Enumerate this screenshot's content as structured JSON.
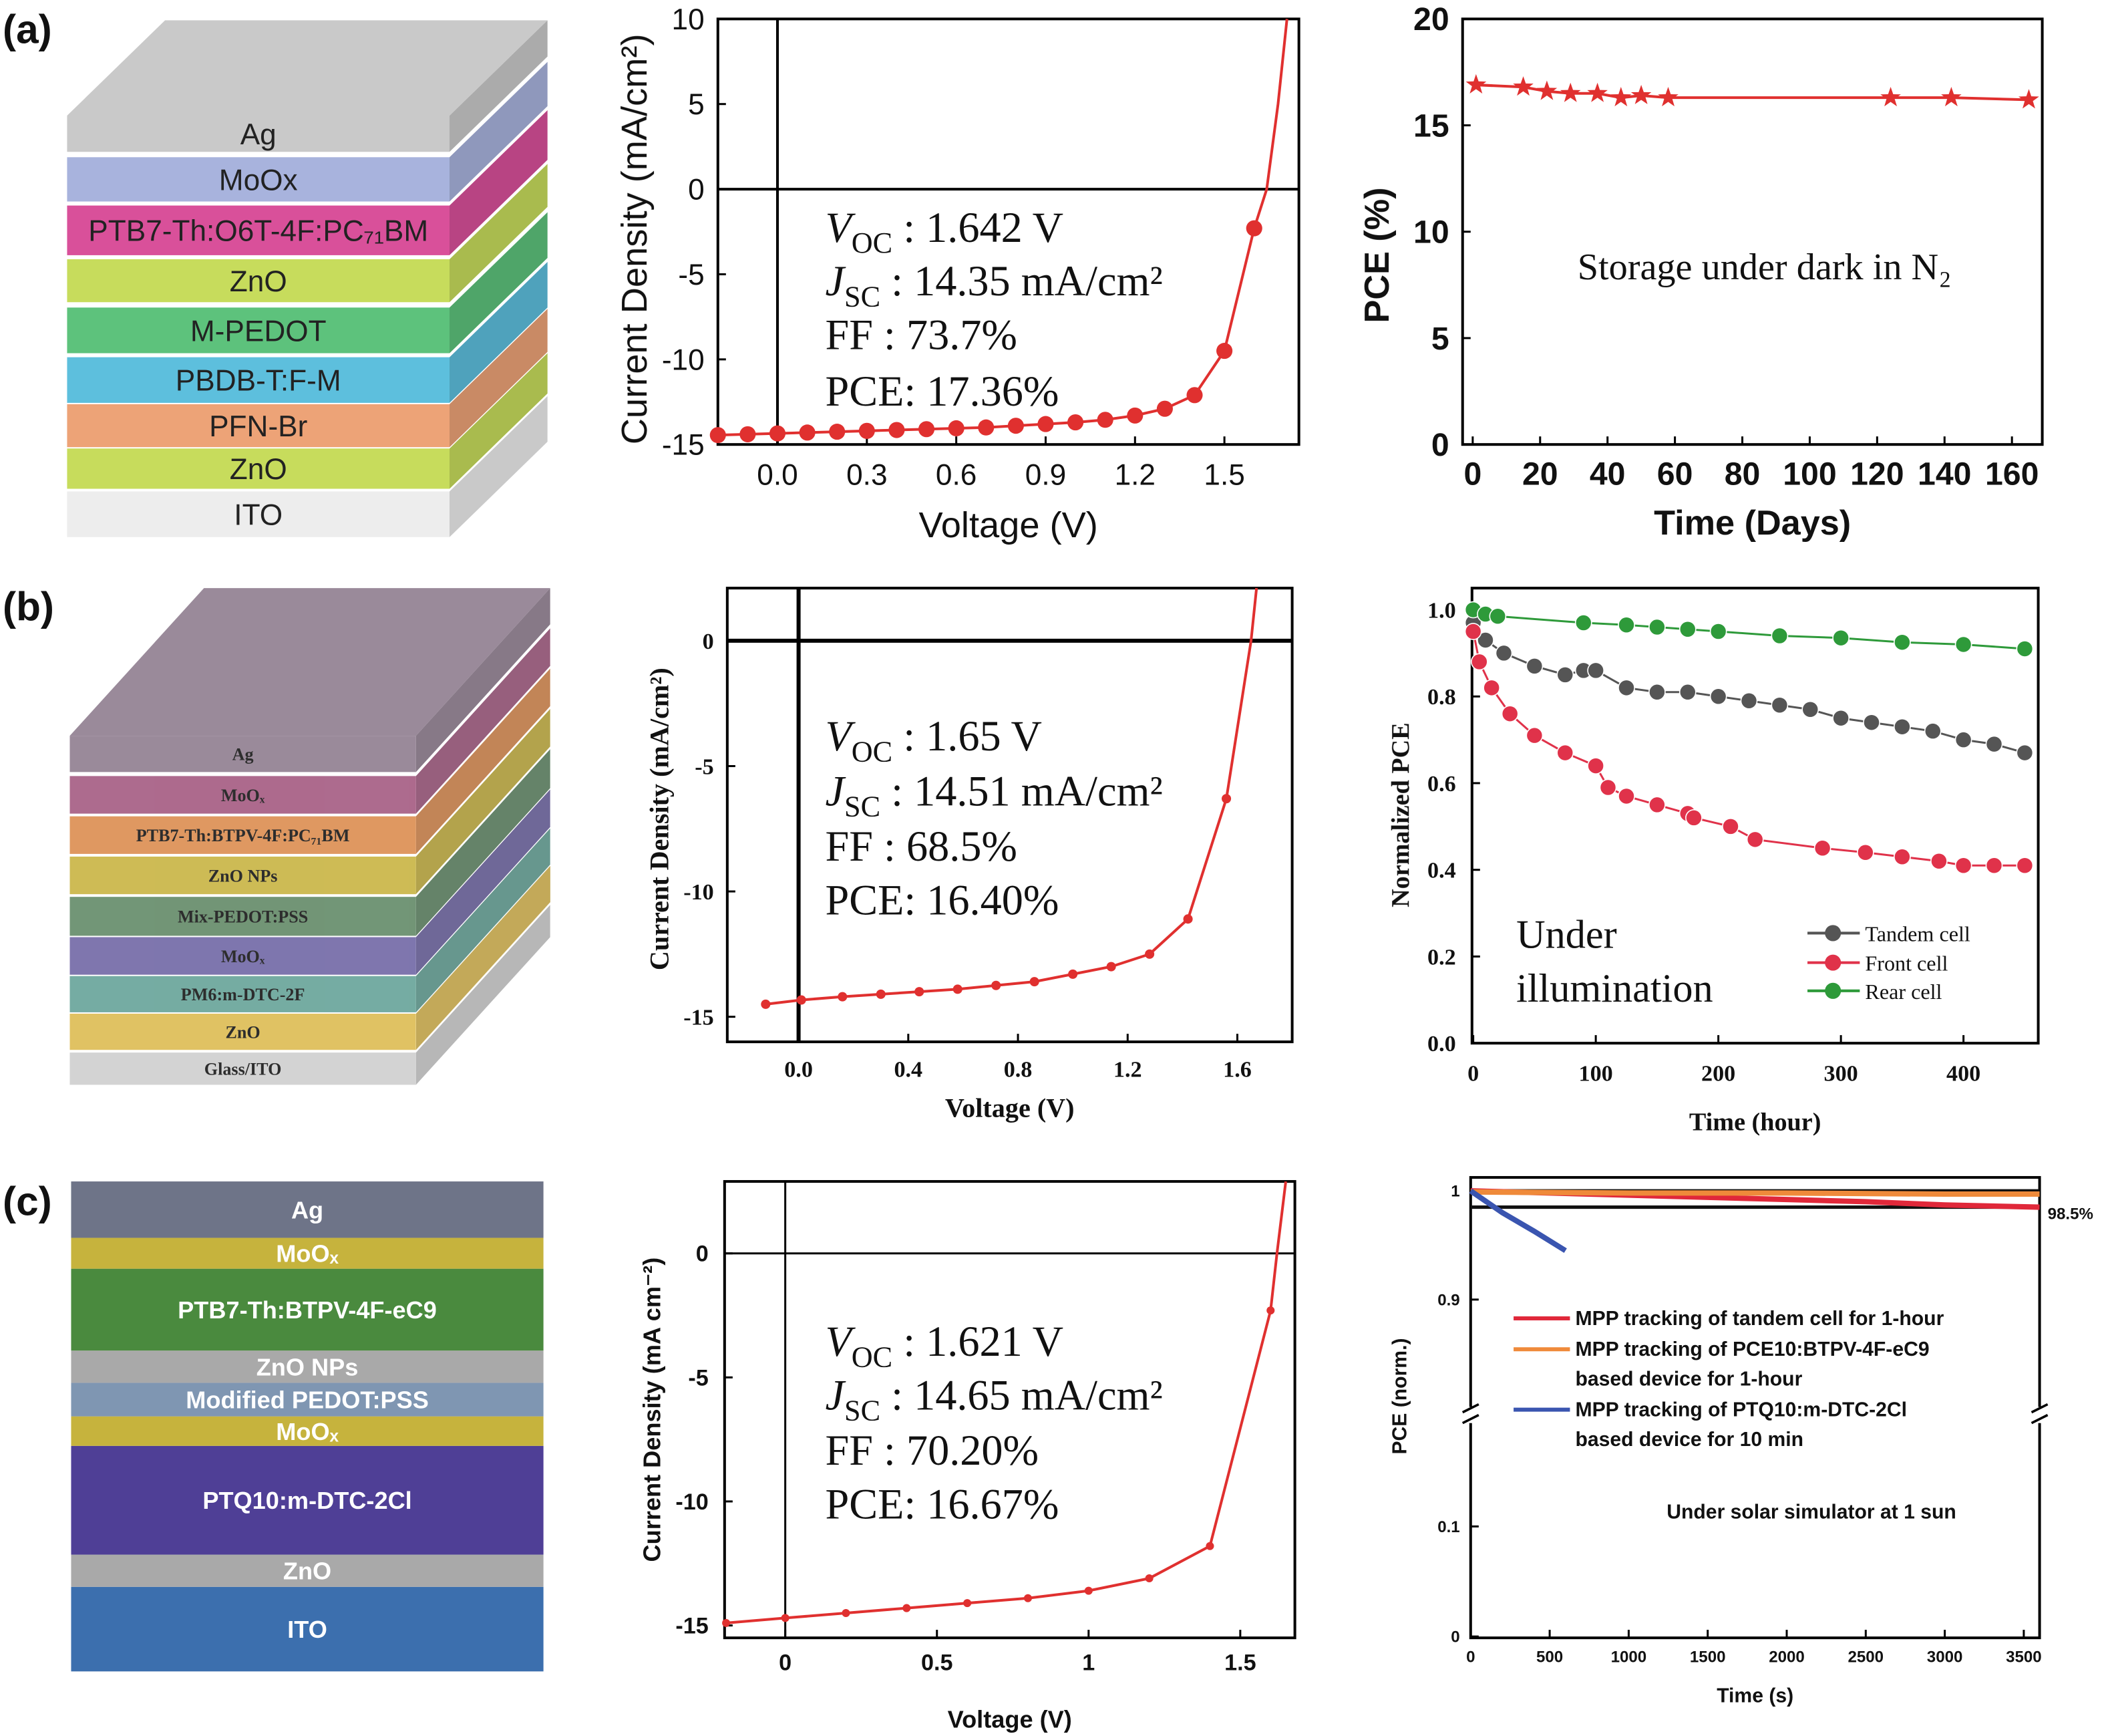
{
  "panel_labels": [
    "(a)",
    "(b)",
    "(c)"
  ],
  "device_stacks": [
    {
      "panel": "a",
      "layers": [
        {
          "label": "Ag",
          "color": "#c9c9c9"
        },
        {
          "label": "MoOx",
          "color": "#a8b3dd"
        },
        {
          "label": "PTB7-Th:O6T-4F:PC₇₁BM",
          "color": "#d9509a"
        },
        {
          "label": "ZnO",
          "color": "#c7dc5c"
        },
        {
          "label": "M-PEDOT",
          "color": "#5dc27c"
        },
        {
          "label": "PBDB-T:F-M",
          "color": "#5dbfdd"
        },
        {
          "label": "PFN-Br",
          "color": "#eda377"
        },
        {
          "label": "ZnO",
          "color": "#c7dc5c"
        },
        {
          "label": "ITO",
          "color": "#ededed"
        }
      ]
    },
    {
      "panel": "b",
      "layers": [
        {
          "label": "Ag",
          "color": "#8c7a8c"
        },
        {
          "label": "MoOₓ",
          "color": "#a2567e"
        },
        {
          "label": "PTB7-Th:BTPV-4F:PC₇₁BM",
          "color": "#db8a4c"
        },
        {
          "label": "ZnO NPs",
          "color": "#c7b23e"
        },
        {
          "label": "Mix-PEDOT:PSS",
          "color": "#5f8764"
        },
        {
          "label": "MoOₓ",
          "color": "#6d63a3"
        },
        {
          "label": "PM6:m-DTC-2F",
          "color": "#62a196"
        },
        {
          "label": "ZnO",
          "color": "#dcba4e"
        },
        {
          "label": "Glass/ITO",
          "color": "#cdcdcd"
        }
      ]
    },
    {
      "panel": "c",
      "layers": [
        {
          "label": "Ag",
          "color": "#6e7488"
        },
        {
          "label": "MoOₓ",
          "color": "#c6b33d"
        },
        {
          "label": "PTB7-Th:BTPV-4F-eC9",
          "color": "#4a8a3e"
        },
        {
          "label": "ZnO NPs",
          "color": "#a9a9a9"
        },
        {
          "label": "Modified PEDOT:PSS",
          "color": "#7f96b2"
        },
        {
          "label": "MoOₓ",
          "color": "#c6b33d"
        },
        {
          "label": "PTQ10:m-DTC-2Cl",
          "color": "#4f3f96"
        },
        {
          "label": "ZnO",
          "color": "#a9a9a9"
        },
        {
          "label": "ITO",
          "color": "#3c6fae"
        }
      ]
    }
  ],
  "chart_data": [
    {
      "panel": "a",
      "type": "line",
      "xlabel": "Voltage (V)",
      "ylabel": "Current Density  (mA/cm²)",
      "xlim": [
        -0.2,
        1.75
      ],
      "ylim": [
        -15,
        10
      ],
      "xticks": [
        "0.0",
        "0.3",
        "0.6",
        "0.9",
        "1.2",
        "1.5"
      ],
      "yticks": [
        "10",
        "5",
        "0",
        "-5",
        "-10",
        "-15"
      ],
      "color": "#e0302f",
      "points": {
        "x": [
          -0.2,
          -0.1,
          0,
          0.1,
          0.2,
          0.3,
          0.4,
          0.5,
          0.6,
          0.7,
          0.8,
          0.9,
          1.0,
          1.1,
          1.2,
          1.3,
          1.4,
          1.5,
          1.6
        ],
        "y": [
          -14.45,
          -14.4,
          -14.35,
          -14.3,
          -14.25,
          -14.2,
          -14.15,
          -14.1,
          -14.05,
          -14.0,
          -13.9,
          -13.8,
          -13.7,
          -13.55,
          -13.3,
          -12.9,
          -12.1,
          -9.5,
          -2.3
        ]
      },
      "curve_tail": {
        "x": [
          1.642,
          1.68,
          1.71
        ],
        "y": [
          0,
          5,
          10
        ]
      },
      "annotations": [
        {
          "sym": "V",
          "sub": "OC",
          "value": " : 1.642 V"
        },
        {
          "sym": "J",
          "sub": "SC",
          "value": " : 14.35 mA/cm²"
        },
        {
          "sym": "",
          "sub": "",
          "value": "FF : 73.7%"
        },
        {
          "sym": "",
          "sub": "",
          "value": "PCE: 17.36%"
        }
      ]
    },
    {
      "panel": "a",
      "type": "line",
      "xlabel": "Time (Days)",
      "ylabel": "PCE (%)",
      "xlim": [
        -3,
        169
      ],
      "ylim": [
        0,
        20
      ],
      "xticks": [
        "0",
        "20",
        "40",
        "60",
        "80",
        "100",
        "120",
        "140",
        "160"
      ],
      "yticks": [
        "20",
        "15",
        "10",
        "5",
        "0"
      ],
      "color": "#e0302f",
      "marker": "star",
      "points": {
        "x": [
          1,
          15,
          22,
          29,
          37,
          44,
          50,
          58,
          124,
          142,
          165
        ],
        "y": [
          16.9,
          16.8,
          16.6,
          16.5,
          16.5,
          16.3,
          16.4,
          16.3,
          16.3,
          16.3,
          16.2
        ]
      },
      "annotation": "Storage under dark in N₂"
    },
    {
      "panel": "b",
      "type": "line",
      "xlabel": "Voltage (V)",
      "ylabel": "Current Density (mA/cm²)",
      "xlim": [
        -0.26,
        1.8
      ],
      "ylim": [
        -16,
        2.1
      ],
      "xticks": [
        "0.0",
        "0.4",
        "0.8",
        "1.2",
        "1.6"
      ],
      "yticks": [
        "0",
        "-5",
        "-10",
        "-15"
      ],
      "color": "#e0302f",
      "points": {
        "x": [
          -0.12,
          0.01,
          0.16,
          0.3,
          0.44,
          0.58,
          0.72,
          0.86,
          1.0,
          1.14,
          1.28,
          1.42,
          1.56
        ],
        "y": [
          -14.5,
          -14.33,
          -14.2,
          -14.1,
          -14.0,
          -13.9,
          -13.75,
          -13.6,
          -13.3,
          -13.0,
          -12.5,
          -11.1,
          -6.3
        ]
      },
      "curve_tail": {
        "x": [
          1.65,
          1.67
        ],
        "y": [
          0,
          2.1
        ]
      },
      "annotations": [
        {
          "sym": "V",
          "sub": "OC",
          "value": " : 1.65 V"
        },
        {
          "sym": "J",
          "sub": "SC",
          "value": " : 14.51 mA/cm²"
        },
        {
          "sym": "",
          "sub": "",
          "value": "FF : 68.5%"
        },
        {
          "sym": "",
          "sub": "",
          "value": "PCE: 16.40%"
        }
      ]
    },
    {
      "panel": "b",
      "type": "line",
      "xlabel": "Time (hour)",
      "ylabel": "Normalized PCE",
      "xlim": [
        -1,
        461
      ],
      "ylim": [
        0,
        1.05
      ],
      "xticks": [
        "0",
        "100",
        "200",
        "300",
        "400"
      ],
      "yticks": [
        "1.0",
        "0.8",
        "0.6",
        "0.4",
        "0.2",
        "0.0"
      ],
      "legend": "bottom-right",
      "annotation_lines": [
        "Under",
        "illumination"
      ],
      "series": [
        {
          "name": "Tandem cell",
          "color": "#555555",
          "x": [
            0,
            10,
            25,
            50,
            75,
            90,
            100,
            125,
            150,
            175,
            200,
            225,
            250,
            275,
            300,
            325,
            350,
            375,
            400,
            425,
            450
          ],
          "y": [
            0.97,
            0.93,
            0.9,
            0.87,
            0.85,
            0.86,
            0.86,
            0.82,
            0.81,
            0.81,
            0.8,
            0.79,
            0.78,
            0.77,
            0.75,
            0.74,
            0.73,
            0.72,
            0.7,
            0.69,
            0.67
          ]
        },
        {
          "name": "Front cell",
          "color": "#e0324a",
          "x": [
            0,
            5,
            15,
            30,
            50,
            75,
            100,
            110,
            125,
            150,
            175,
            180,
            210,
            230,
            285,
            320,
            350,
            380,
            400,
            425,
            450
          ],
          "y": [
            0.95,
            0.88,
            0.82,
            0.76,
            0.71,
            0.67,
            0.64,
            0.59,
            0.57,
            0.55,
            0.53,
            0.52,
            0.5,
            0.47,
            0.45,
            0.44,
            0.43,
            0.42,
            0.41,
            0.41,
            0.41
          ]
        },
        {
          "name": "Rear cell",
          "color": "#2e9a3a",
          "x": [
            0,
            10,
            20,
            90,
            125,
            150,
            175,
            200,
            250,
            300,
            350,
            400,
            450
          ],
          "y": [
            1.0,
            0.99,
            0.985,
            0.97,
            0.965,
            0.96,
            0.955,
            0.95,
            0.94,
            0.935,
            0.925,
            0.92,
            0.91
          ]
        }
      ]
    },
    {
      "panel": "c",
      "type": "line",
      "xlabel": "Voltage (V)",
      "ylabel": "Current Density (mA cm⁻²)",
      "xlim": [
        -0.2,
        1.68
      ],
      "ylim": [
        -15.5,
        2.9
      ],
      "xticks": [
        "0",
        "0.5",
        "1",
        "1.5"
      ],
      "yticks": [
        "0",
        "-5",
        "-10",
        "-15"
      ],
      "color": "#e0302f",
      "points": {
        "x": [
          -0.195,
          0,
          0.2,
          0.4,
          0.6,
          0.8,
          1.0,
          1.2,
          1.4,
          1.6
        ],
        "y": [
          -14.9,
          -14.7,
          -14.5,
          -14.3,
          -14.1,
          -13.9,
          -13.6,
          -13.1,
          -11.8,
          -2.3
        ]
      },
      "curve_tail": {
        "x": [
          1.621,
          1.65
        ],
        "y": [
          0,
          2.9
        ]
      },
      "annotations": [
        {
          "sym": "V",
          "sub": "OC",
          "value": " : 1.621 V"
        },
        {
          "sym": "J",
          "sub": "SC",
          "value": " : 14.65 mA/cm²"
        },
        {
          "sym": "",
          "sub": "",
          "value": "FF : 70.20%"
        },
        {
          "sym": "",
          "sub": "",
          "value": "PCE: 16.67%"
        }
      ]
    },
    {
      "panel": "c",
      "type": "line",
      "xlabel": "Time (s)",
      "ylabel": "PCE (norm.)",
      "xlim": [
        0,
        3600
      ],
      "y_segments": [
        [
          0,
          0.1
        ],
        [
          0.9,
          1.0
        ]
      ],
      "y_axis_break": true,
      "xticks": [
        "0",
        "500",
        "1000",
        "1500",
        "2000",
        "2500",
        "3000",
        "3500"
      ],
      "yticks": [
        "1",
        "0.9",
        "0.1",
        "0"
      ],
      "reference_lines": [
        1.0,
        0.985
      ],
      "reference_label": "98.5%",
      "annotation": "Under solar simulator at 1 sun",
      "series": [
        {
          "name_lines": [
            "MPP tracking of tandem cell for 1-hour"
          ],
          "color": "#e0283a",
          "x": [
            0,
            500,
            1000,
            1500,
            2000,
            2500,
            3000,
            3600
          ],
          "y": [
            1.0,
            0.998,
            0.996,
            0.994,
            0.992,
            0.99,
            0.987,
            0.985
          ]
        },
        {
          "name_lines": [
            "MPP tracking of PCE10:BTPV-4F-eC9",
            "based device for 1-hour"
          ],
          "color": "#ef8a3a",
          "x": [
            0,
            1000,
            2000,
            3000,
            3600
          ],
          "y": [
            0.999,
            0.998,
            0.998,
            0.997,
            0.997
          ]
        },
        {
          "name_lines": [
            "MPP tracking of PTQ10:m-DTC-2Cl",
            "based device for 10 min"
          ],
          "color": "#3a55b0",
          "x": [
            0,
            100,
            200,
            400,
            600
          ],
          "y": [
            1.0,
            0.99,
            0.98,
            0.963,
            0.945
          ]
        }
      ]
    }
  ]
}
